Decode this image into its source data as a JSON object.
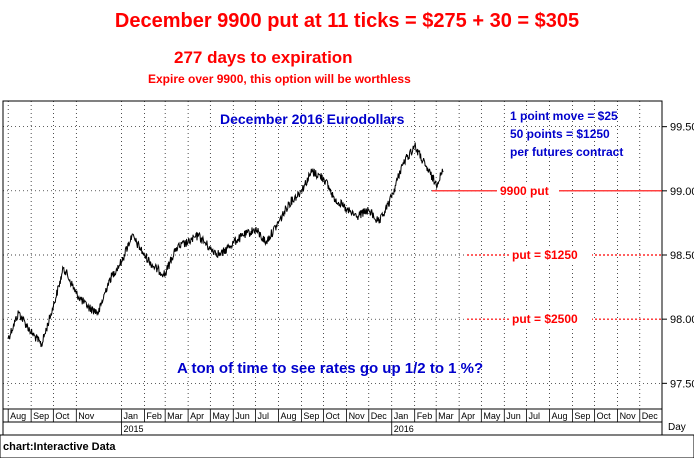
{
  "header": {
    "headline": "December 9900 put at 11 ticks = $275 + 30 = $305",
    "days_to_expiration": "277 days to expiration",
    "expire_note": "Expire over 9900, this option will be worthless"
  },
  "footer": {
    "source": "chart:Interactive Data"
  },
  "colors": {
    "price": "#000000",
    "annotation_red": "#ff0000",
    "annotation_blue": "#0000cc",
    "grid": "#000000"
  },
  "chart_data": {
    "type": "line",
    "title": "December 2016 Eurodollars",
    "xlabel": "Day",
    "ylabel": "",
    "ylim": [
      97.3,
      99.7
    ],
    "grid": true,
    "y_ticks": [
      "97.50",
      "98.00",
      "98.50",
      "99.00",
      "99.50"
    ],
    "x_tick_labels": [
      "Aug",
      "Sep",
      "Oct",
      "Nov",
      "Jan",
      "Feb",
      "Mar",
      "Apr",
      "May",
      "Jun",
      "Jul",
      "Aug",
      "Sep",
      "Oct",
      "Nov",
      "Dec",
      "Jan",
      "Feb",
      "Mar",
      "Apr",
      "May",
      "Jun",
      "Jul",
      "Aug",
      "Sep",
      "Oct",
      "Nov",
      "Dec"
    ],
    "year_labels": [
      "2015",
      "2016"
    ],
    "x": [
      "2014-08-01",
      "2014-08-15",
      "2014-09-01",
      "2014-09-15",
      "2014-10-01",
      "2014-10-15",
      "2014-11-01",
      "2014-11-15",
      "2014-12-01",
      "2014-12-15",
      "2015-01-01",
      "2015-01-15",
      "2015-02-01",
      "2015-02-15",
      "2015-03-01",
      "2015-03-15",
      "2015-04-01",
      "2015-04-15",
      "2015-05-01",
      "2015-05-15",
      "2015-06-01",
      "2015-06-15",
      "2015-07-01",
      "2015-07-15",
      "2015-08-01",
      "2015-08-15",
      "2015-09-01",
      "2015-09-15",
      "2015-10-01",
      "2015-10-15",
      "2015-11-01",
      "2015-11-15",
      "2015-12-01",
      "2015-12-15",
      "2016-01-01",
      "2016-01-15",
      "2016-02-01",
      "2016-02-15",
      "2016-03-01",
      "2016-03-10"
    ],
    "series": [
      {
        "values": [
          97.85,
          98.05,
          97.9,
          97.8,
          98.1,
          98.4,
          98.2,
          98.1,
          98.05,
          98.3,
          98.45,
          98.65,
          98.5,
          98.4,
          98.35,
          98.55,
          98.6,
          98.65,
          98.55,
          98.5,
          98.6,
          98.65,
          98.7,
          98.6,
          98.75,
          98.9,
          99.0,
          99.15,
          99.1,
          98.95,
          98.85,
          98.8,
          98.85,
          98.75,
          98.95,
          99.2,
          99.35,
          99.2,
          99.05,
          99.15
        ]
      }
    ],
    "annotations": [
      {
        "label": "1 point move = $25"
      },
      {
        "label": "50 points = $1250"
      },
      {
        "label": "per futures contract"
      },
      {
        "label": "A ton of time to see rates go up 1/2 to 1 %?"
      }
    ],
    "reference_lines": [
      {
        "label": "9900 put",
        "value": 99.0
      },
      {
        "label": "put = $1250",
        "value": 98.5
      },
      {
        "label": "put = $2500",
        "value": 98.0
      }
    ]
  }
}
